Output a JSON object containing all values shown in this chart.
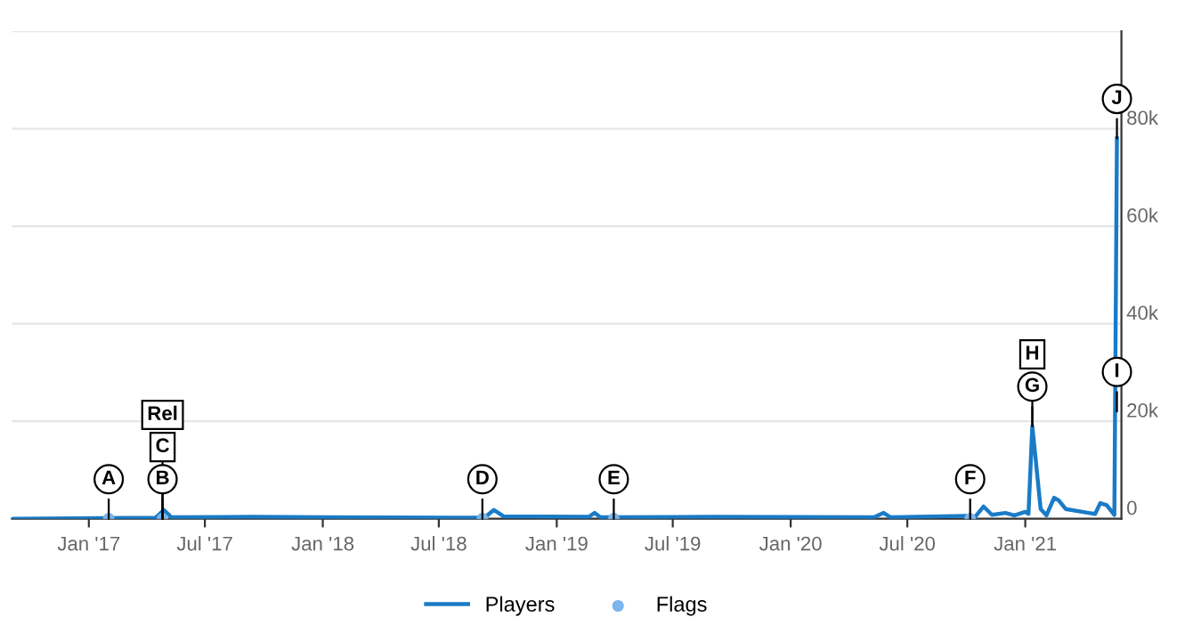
{
  "chart_data": {
    "type": "line",
    "xlim": [
      "2016-09-03",
      "2021-05-31"
    ],
    "xticks": [
      {
        "value": "2017-01-01",
        "label": "Jan '17"
      },
      {
        "value": "2017-07-01",
        "label": "Jul '17"
      },
      {
        "value": "2018-01-01",
        "label": "Jan '18"
      },
      {
        "value": "2018-07-01",
        "label": "Jul '18"
      },
      {
        "value": "2019-01-01",
        "label": "Jan '19"
      },
      {
        "value": "2019-07-01",
        "label": "Jul '19"
      },
      {
        "value": "2020-01-01",
        "label": "Jan '20"
      },
      {
        "value": "2020-07-01",
        "label": "Jul '20"
      },
      {
        "value": "2021-01-01",
        "label": "Jan '21"
      }
    ],
    "ylim": [
      0,
      100000
    ],
    "yticks": [
      0,
      {
        "value": 20000,
        "label": "20k"
      },
      {
        "value": 40000,
        "label": "40k"
      },
      {
        "value": 60000,
        "label": "60k"
      },
      {
        "value": 80000,
        "label": "80k"
      },
      {
        "value": 100000,
        "label": null
      }
    ],
    "grid": "y",
    "legend": "bottom",
    "series": [
      {
        "name": "Players",
        "color": "#1a7bc6",
        "x": [
          "2016-09-03",
          "2017-04-15",
          "2017-04-28",
          "2017-05-10",
          "2017-09-15",
          "2018-01-01",
          "2018-09-10",
          "2018-09-25",
          "2018-10-10",
          "2019-02-20",
          "2019-03-01",
          "2019-03-10",
          "2019-09-01",
          "2020-05-10",
          "2020-05-25",
          "2020-06-05",
          "2020-10-01",
          "2020-10-15",
          "2020-10-28",
          "2020-11-10",
          "2020-12-01",
          "2020-12-15",
          "2021-01-01",
          "2021-01-06",
          "2021-01-12",
          "2021-01-25",
          "2021-02-03",
          "2021-02-15",
          "2021-02-22",
          "2021-03-05",
          "2021-04-10",
          "2021-04-20",
          "2021-04-28",
          "2021-05-08",
          "2021-05-20",
          "2021-05-24"
        ],
        "values": [
          0,
          200,
          1800,
          300,
          400,
          300,
          200,
          1800,
          500,
          400,
          1200,
          300,
          400,
          300,
          1200,
          300,
          600,
          400,
          2500,
          800,
          1200,
          700,
          1400,
          1000,
          19000,
          2000,
          700,
          4300,
          3800,
          2000,
          1200,
          1000,
          3200,
          2800,
          800,
          78000
        ]
      },
      {
        "name": "Flags",
        "type": "scatter",
        "color": "#7cb5ec",
        "x": [
          "2017-02-01",
          "2017-04-26",
          "2018-09-07",
          "2019-03-31",
          "2020-10-07"
        ],
        "values": [
          0,
          0,
          0,
          0,
          0
        ]
      }
    ],
    "annotations": [
      {
        "text": "A",
        "x": "2017-02-01",
        "y": 0
      },
      {
        "text": "B",
        "x": "2017-04-26",
        "y": 0
      },
      {
        "text": "C",
        "x": "2017-04-26",
        "y": 0
      },
      {
        "text": "Rel",
        "x": "2017-04-26",
        "y": 0
      },
      {
        "text": "D",
        "x": "2018-09-07",
        "y": 0
      },
      {
        "text": "E",
        "x": "2019-03-31",
        "y": 0
      },
      {
        "text": "F",
        "x": "2020-10-07",
        "y": 0
      },
      {
        "text": "G",
        "x": "2021-01-12",
        "y": 19000
      },
      {
        "text": "H",
        "x": "2021-01-12",
        "y": 19000
      },
      {
        "text": "I",
        "x": "2021-05-24",
        "y": 22000
      },
      {
        "text": "J",
        "x": "2021-05-24",
        "y": 78000
      }
    ]
  }
}
